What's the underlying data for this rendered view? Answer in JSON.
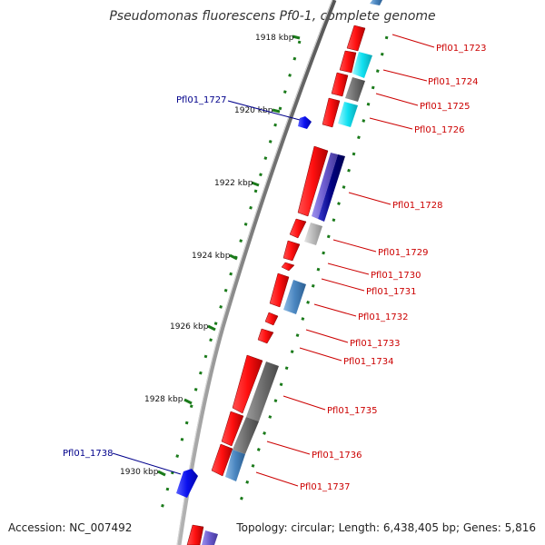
{
  "title": "Pseudomonas fluorescens Pf0-1, complete genome",
  "footer": {
    "accession": "Accession: NC_007492",
    "summary": "Topology: circular; Length: 6,438,405 bp; Genes: 5,816"
  },
  "colors": {
    "backbone": "#8a8a8a",
    "tick": "#1a7a1a",
    "gene_red": "#ff1010",
    "label_red": "#cc0000",
    "label_blue": "#00008b",
    "blue_gene": "#0a10ee",
    "cyan": "#10e0f0",
    "steelblue": "#4a86c0",
    "gray": "#6e6e6e",
    "lightgray": "#b8b8b8",
    "slate": "#6a5acd",
    "navy": "#000080"
  },
  "ticks": [
    "1918 kbp",
    "1920 kbp",
    "1922 kbp",
    "1924 kbp",
    "1926 kbp",
    "1928 kbp",
    "1930 kbp"
  ],
  "labels_right": [
    "Pfl01_1723",
    "Pfl01_1724",
    "Pfl01_1725",
    "Pfl01_1726",
    "Pfl01_1728",
    "Pfl01_1729",
    "Pfl01_1730",
    "Pfl01_1731",
    "Pfl01_1732",
    "Pfl01_1733",
    "Pfl01_1734",
    "Pfl01_1735",
    "Pfl01_1736",
    "Pfl01_1737"
  ],
  "labels_left": [
    "Pfl01_1727",
    "Pfl01_1738"
  ]
}
